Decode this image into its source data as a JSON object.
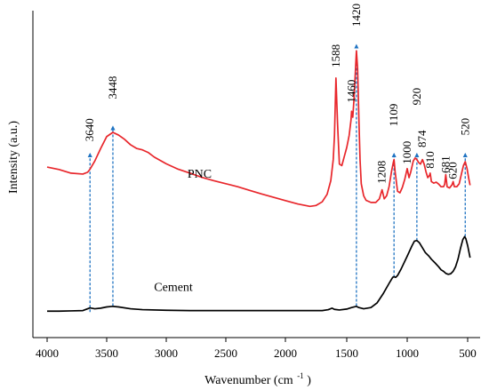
{
  "chart_data": {
    "type": "line",
    "title": "",
    "xlabel": "Wavenumber (cm",
    "xlabel_superscript": "-1",
    "xlabel_suffix": ")",
    "ylabel": "Intensity (a.u.)",
    "xlim": [
      4000,
      400
    ],
    "x_reversed": true,
    "y_ticks_shown": false,
    "grid": false,
    "x_ticks": [
      4000,
      3500,
      3000,
      2500,
      2000,
      1500,
      1000,
      500
    ],
    "x_tick_labels": [
      "4000",
      "3500",
      "3000",
      "2500",
      "2000",
      "1500",
      "1000",
      "500"
    ],
    "colors": {
      "pnc": "#e8262b",
      "cement": "#000000",
      "marker": "#1f73c2"
    },
    "series": [
      {
        "name": "PNC",
        "label": "PNC",
        "points": [
          [
            4000,
            0.535
          ],
          [
            3900,
            0.527
          ],
          [
            3800,
            0.515
          ],
          [
            3700,
            0.512
          ],
          [
            3660,
            0.518
          ],
          [
            3640,
            0.528
          ],
          [
            3600,
            0.555
          ],
          [
            3550,
            0.597
          ],
          [
            3500,
            0.636
          ],
          [
            3448,
            0.65
          ],
          [
            3400,
            0.641
          ],
          [
            3350,
            0.627
          ],
          [
            3300,
            0.609
          ],
          [
            3250,
            0.597
          ],
          [
            3200,
            0.592
          ],
          [
            3150,
            0.583
          ],
          [
            3100,
            0.568
          ],
          [
            3000,
            0.546
          ],
          [
            2900,
            0.528
          ],
          [
            2800,
            0.515
          ],
          [
            2700,
            0.501
          ],
          [
            2600,
            0.49
          ],
          [
            2500,
            0.48
          ],
          [
            2400,
            0.47
          ],
          [
            2300,
            0.458
          ],
          [
            2200,
            0.446
          ],
          [
            2100,
            0.435
          ],
          [
            2000,
            0.424
          ],
          [
            1900,
            0.413
          ],
          [
            1800,
            0.405
          ],
          [
            1750,
            0.408
          ],
          [
            1700,
            0.42
          ],
          [
            1660,
            0.445
          ],
          [
            1630,
            0.49
          ],
          [
            1610,
            0.56
          ],
          [
            1600,
            0.64
          ],
          [
            1588,
            0.83
          ],
          [
            1575,
            0.68
          ],
          [
            1560,
            0.545
          ],
          [
            1540,
            0.54
          ],
          [
            1520,
            0.57
          ],
          [
            1500,
            0.6
          ],
          [
            1480,
            0.64
          ],
          [
            1465,
            0.69
          ],
          [
            1460,
            0.72
          ],
          [
            1450,
            0.7
          ],
          [
            1440,
            0.76
          ],
          [
            1430,
            0.84
          ],
          [
            1420,
            0.92
          ],
          [
            1410,
            0.86
          ],
          [
            1400,
            0.7
          ],
          [
            1390,
            0.56
          ],
          [
            1380,
            0.48
          ],
          [
            1360,
            0.44
          ],
          [
            1340,
            0.425
          ],
          [
            1300,
            0.418
          ],
          [
            1260,
            0.418
          ],
          [
            1230,
            0.43
          ],
          [
            1208,
            0.46
          ],
          [
            1190,
            0.43
          ],
          [
            1170,
            0.44
          ],
          [
            1150,
            0.47
          ],
          [
            1130,
            0.52
          ],
          [
            1115,
            0.55
          ],
          [
            1109,
            0.56
          ],
          [
            1100,
            0.52
          ],
          [
            1080,
            0.455
          ],
          [
            1060,
            0.45
          ],
          [
            1040,
            0.468
          ],
          [
            1020,
            0.495
          ],
          [
            1000,
            0.53
          ],
          [
            985,
            0.5
          ],
          [
            970,
            0.52
          ],
          [
            950,
            0.555
          ],
          [
            935,
            0.565
          ],
          [
            920,
            0.56
          ],
          [
            905,
            0.55
          ],
          [
            890,
            0.545
          ],
          [
            874,
            0.56
          ],
          [
            860,
            0.545
          ],
          [
            845,
            0.52
          ],
          [
            830,
            0.5
          ],
          [
            815,
            0.508
          ],
          [
            810,
            0.515
          ],
          [
            800,
            0.487
          ],
          [
            780,
            0.482
          ],
          [
            760,
            0.485
          ],
          [
            740,
            0.479
          ],
          [
            720,
            0.47
          ],
          [
            700,
            0.47
          ],
          [
            690,
            0.478
          ],
          [
            681,
            0.51
          ],
          [
            670,
            0.47
          ],
          [
            650,
            0.466
          ],
          [
            630,
            0.476
          ],
          [
            620,
            0.487
          ],
          [
            610,
            0.47
          ],
          [
            590,
            0.47
          ],
          [
            570,
            0.48
          ],
          [
            550,
            0.515
          ],
          [
            535,
            0.54
          ],
          [
            520,
            0.553
          ],
          [
            505,
            0.53
          ],
          [
            490,
            0.495
          ],
          [
            480,
            0.475
          ]
        ]
      },
      {
        "name": "Cement",
        "label": "Cement",
        "points": [
          [
            4000,
            0.058
          ],
          [
            3900,
            0.058
          ],
          [
            3800,
            0.059
          ],
          [
            3700,
            0.06
          ],
          [
            3660,
            0.066
          ],
          [
            3640,
            0.069
          ],
          [
            3600,
            0.066
          ],
          [
            3550,
            0.068
          ],
          [
            3500,
            0.072
          ],
          [
            3448,
            0.074
          ],
          [
            3400,
            0.072
          ],
          [
            3300,
            0.066
          ],
          [
            3200,
            0.063
          ],
          [
            3000,
            0.061
          ],
          [
            2800,
            0.06
          ],
          [
            2600,
            0.06
          ],
          [
            2400,
            0.06
          ],
          [
            2200,
            0.06
          ],
          [
            2000,
            0.06
          ],
          [
            1800,
            0.06
          ],
          [
            1700,
            0.06
          ],
          [
            1650,
            0.063
          ],
          [
            1620,
            0.068
          ],
          [
            1600,
            0.064
          ],
          [
            1560,
            0.062
          ],
          [
            1500,
            0.065
          ],
          [
            1460,
            0.07
          ],
          [
            1420,
            0.074
          ],
          [
            1400,
            0.07
          ],
          [
            1360,
            0.066
          ],
          [
            1300,
            0.07
          ],
          [
            1250,
            0.085
          ],
          [
            1200,
            0.115
          ],
          [
            1150,
            0.15
          ],
          [
            1120,
            0.17
          ],
          [
            1109,
            0.172
          ],
          [
            1095,
            0.17
          ],
          [
            1080,
            0.176
          ],
          [
            1050,
            0.198
          ],
          [
            1000,
            0.24
          ],
          [
            960,
            0.275
          ],
          [
            940,
            0.29
          ],
          [
            920,
            0.292
          ],
          [
            900,
            0.285
          ],
          [
            880,
            0.272
          ],
          [
            850,
            0.252
          ],
          [
            820,
            0.24
          ],
          [
            800,
            0.23
          ],
          [
            770,
            0.218
          ],
          [
            740,
            0.205
          ],
          [
            720,
            0.195
          ],
          [
            700,
            0.19
          ],
          [
            680,
            0.183
          ],
          [
            660,
            0.18
          ],
          [
            640,
            0.182
          ],
          [
            620,
            0.19
          ],
          [
            600,
            0.205
          ],
          [
            580,
            0.23
          ],
          [
            560,
            0.265
          ],
          [
            540,
            0.295
          ],
          [
            525,
            0.305
          ],
          [
            515,
            0.298
          ],
          [
            500,
            0.275
          ],
          [
            490,
            0.255
          ],
          [
            480,
            0.235
          ]
        ]
      }
    ],
    "series_labels": [
      {
        "text": "PNC",
        "x": 2720,
        "y": 0.5
      },
      {
        "text": "Cement",
        "x": 2940,
        "y": 0.125
      }
    ],
    "peak_markers": [
      {
        "label": "3640",
        "x": 3640,
        "y_from": 0.055,
        "y_to": 0.575,
        "label_y": 0.62
      },
      {
        "label": "3448",
        "x": 3448,
        "y_from": 0.075,
        "y_to": 0.665,
        "label_y": 0.76
      },
      {
        "label": "1420",
        "x": 1420,
        "y_from": 0.075,
        "y_to": 0.935,
        "label_y": 1.0
      },
      {
        "label": "1109",
        "x": 1109,
        "y_from": 0.17,
        "y_to": 0.575,
        "label_y": 0.67
      },
      {
        "label": "920",
        "x": 920,
        "y_from": 0.292,
        "y_to": 0.575,
        "label_y": 0.74
      },
      {
        "label": "520",
        "x": 520,
        "y_from": 0.305,
        "y_to": 0.575,
        "label_y": 0.64
      }
    ],
    "peak_labels": [
      {
        "label": "1588",
        "x": 1588,
        "y": 0.865
      },
      {
        "label": "1460",
        "x": 1460,
        "y": 0.748
      },
      {
        "label": "1208",
        "x": 1208,
        "y": 0.48
      },
      {
        "label": "1000",
        "x": 1000,
        "y": 0.545
      },
      {
        "label": "874",
        "x": 874,
        "y": 0.6
      },
      {
        "label": "810",
        "x": 810,
        "y": 0.53
      },
      {
        "label": "681",
        "x": 681,
        "y": 0.515
      },
      {
        "label": "620",
        "x": 620,
        "y": 0.495
      }
    ],
    "ylim": [
      0,
      1
    ]
  }
}
